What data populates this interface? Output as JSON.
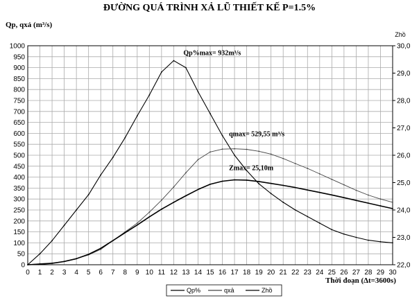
{
  "chart_data": {
    "type": "line",
    "title": "ĐƯỜNG QUÁ TRÌNH XẢ LŨ THIẾT KẾ P=1.5%",
    "ylabel_left": "Qp, qxả (m³/s)",
    "ylabel_right": "Zhồ",
    "xlabel": "Thời đoạn (Δt=3600s)",
    "xlim": [
      0,
      30
    ],
    "ylim_left": [
      0,
      1000
    ],
    "ylim_right": [
      22.0,
      30.0
    ],
    "x_ticks": [
      0,
      1,
      2,
      3,
      4,
      5,
      6,
      7,
      8,
      9,
      10,
      11,
      12,
      13,
      14,
      15,
      16,
      17,
      18,
      19,
      20,
      21,
      22,
      23,
      24,
      25,
      26,
      27,
      28,
      29,
      30
    ],
    "y_left_ticks": [
      0,
      50,
      100,
      150,
      200,
      250,
      300,
      350,
      400,
      450,
      500,
      550,
      600,
      650,
      700,
      750,
      800,
      850,
      900,
      950,
      1000
    ],
    "y_right_ticks": [
      "22,0",
      "23,0",
      "24,0",
      "25,0",
      "26,0",
      "27,0",
      "28,0",
      "29,0",
      "30,0"
    ],
    "grid": true,
    "legend_position": "bottom",
    "series": [
      {
        "name": "Qp%",
        "axis": "left",
        "x": [
          0,
          1,
          2,
          3,
          4,
          5,
          6,
          7,
          8,
          9,
          10,
          11,
          12,
          13,
          14,
          15,
          16,
          17,
          18,
          19,
          20,
          21,
          22,
          23,
          24,
          25,
          26,
          27,
          28,
          29,
          30
        ],
        "values": [
          0,
          50,
          110,
          180,
          250,
          320,
          410,
          490,
          580,
          680,
          775,
          880,
          932,
          900,
          790,
          690,
          590,
          500,
          430,
          370,
          325,
          285,
          250,
          220,
          190,
          160,
          140,
          125,
          112,
          105,
          100
        ]
      },
      {
        "name": "qxả",
        "axis": "left",
        "x": [
          0,
          1,
          2,
          3,
          4,
          5,
          6,
          7,
          8,
          9,
          10,
          11,
          12,
          13,
          14,
          15,
          16,
          17,
          18,
          19,
          20,
          21,
          22,
          23,
          24,
          25,
          26,
          27,
          28,
          29,
          30
        ],
        "values": [
          0,
          5,
          8,
          15,
          28,
          45,
          70,
          110,
          150,
          190,
          240,
          295,
          355,
          420,
          480,
          515,
          528,
          529.55,
          527,
          518,
          505,
          485,
          462,
          440,
          415,
          390,
          365,
          340,
          318,
          300,
          285
        ]
      },
      {
        "name": "Zhồ",
        "axis": "right",
        "x": [
          0,
          1,
          2,
          3,
          4,
          5,
          6,
          7,
          8,
          9,
          10,
          11,
          12,
          13,
          14,
          15,
          16,
          17,
          18,
          19,
          20,
          21,
          22,
          23,
          24,
          25,
          26,
          27,
          28,
          29,
          30
        ],
        "values": [
          22.0,
          22.02,
          22.05,
          22.12,
          22.22,
          22.38,
          22.6,
          22.88,
          23.17,
          23.45,
          23.75,
          24.03,
          24.28,
          24.52,
          24.75,
          24.94,
          25.05,
          25.1,
          25.09,
          25.04,
          24.97,
          24.9,
          24.82,
          24.73,
          24.64,
          24.55,
          24.45,
          24.35,
          24.25,
          24.15,
          24.05
        ]
      }
    ],
    "annotations": [
      {
        "text": "Qp%max= 932m³/s",
        "series": "Qp%",
        "x": 12,
        "y": 932
      },
      {
        "text": "qmax= 529,55 m³/s",
        "series": "qxả",
        "x": 17,
        "y": 529.55
      },
      {
        "text": "Zmax= 25,10m",
        "series": "Zhồ",
        "x": 17,
        "y": 25.1
      }
    ],
    "colors": {
      "Qp%": "#000000",
      "qxả": "#444444",
      "Zhồ": "#000000",
      "grid": "#aaaaaa"
    }
  }
}
